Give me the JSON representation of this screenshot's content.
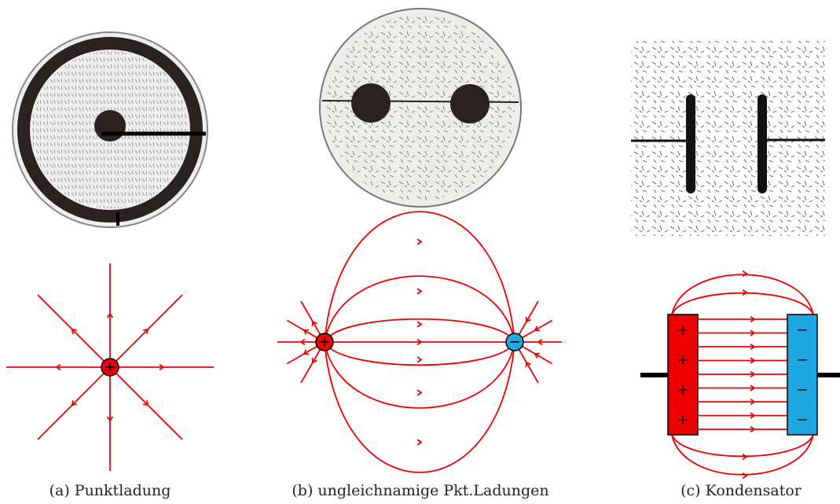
{
  "panels": [
    {
      "caption": "(a) Punktladung",
      "charges": [
        "+"
      ]
    },
    {
      "caption": "(b) ungleichnamige Pkt.Ladungen",
      "charges": [
        "+",
        "−"
      ]
    },
    {
      "caption": "(c) Kondensator",
      "plates": [
        [
          "+",
          "+",
          "+",
          "+"
        ],
        [
          "−",
          "−",
          "−",
          "−"
        ]
      ]
    }
  ]
}
